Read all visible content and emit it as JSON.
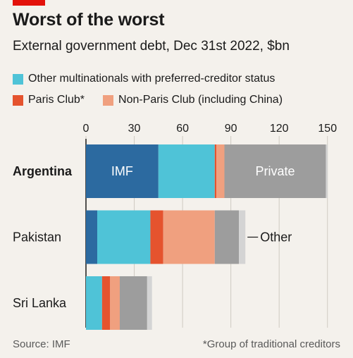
{
  "header": {
    "title": "Worst of the worst",
    "subtitle": "External government debt, Dec 31st 2022, $bn"
  },
  "legend": [
    {
      "label": "Other multinationals with preferred-creditor status",
      "color": "#4fc3d7"
    },
    {
      "label": "Paris Club*",
      "color": "#e5532e"
    },
    {
      "label": "Non-Paris Club (including China)",
      "color": "#f0a07f"
    }
  ],
  "footer": {
    "source": "Source: IMF",
    "footnote": "*Group of traditional creditors"
  },
  "colors": {
    "brand_red": "#e3120b",
    "imf": "#2c6aa0",
    "multinationals": "#4fc3d7",
    "paris_club": "#e5532e",
    "non_paris_club": "#f0a07f",
    "private": "#9d9d9d",
    "other": "#d4d4d4"
  },
  "chart_data": {
    "type": "bar",
    "orientation": "horizontal",
    "stacked": true,
    "categories": [
      "Argentina",
      "Pakistan",
      "Sri Lanka"
    ],
    "highlighted_category": "Argentina",
    "x_ticks": [
      0,
      30,
      60,
      90,
      120,
      150
    ],
    "xlim": [
      0,
      150
    ],
    "series": [
      {
        "key": "imf",
        "values": [
          45,
          7,
          0
        ]
      },
      {
        "key": "multinationals",
        "name": "Other multinationals with preferred-creditor status",
        "values": [
          35,
          33,
          10
        ]
      },
      {
        "key": "paris_club",
        "name": "Paris Club*",
        "values": [
          1,
          8,
          5
        ]
      },
      {
        "key": "non_paris_club",
        "name": "Non-Paris Club (including China)",
        "values": [
          5,
          32,
          6
        ]
      },
      {
        "key": "private",
        "values": [
          63,
          15,
          17
        ]
      },
      {
        "key": "other",
        "values": [
          1,
          4,
          3
        ]
      }
    ],
    "annotations": {
      "imf_label": "IMF",
      "private_label": "Private",
      "other_label": "Other"
    }
  }
}
